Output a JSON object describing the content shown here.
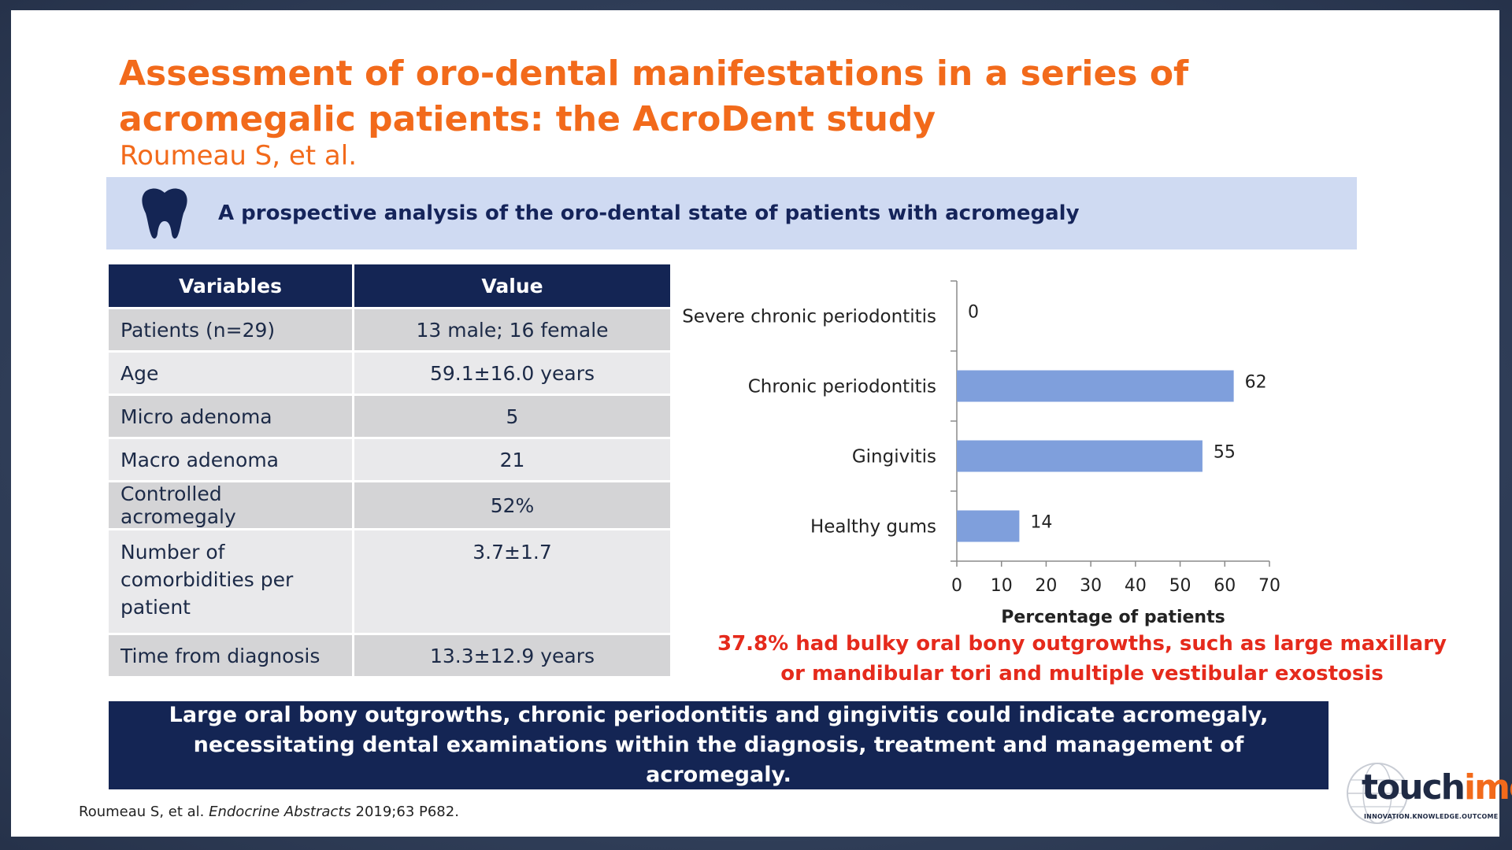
{
  "title": "Assessment of oro-dental manifestations in a series of acromegalic patients: the AcroDent study",
  "authors": "Roumeau S, et al.",
  "banner": {
    "icon": "tooth-icon",
    "text": "A prospective analysis of the oro-dental state of patients with acromegaly"
  },
  "table": {
    "headers": [
      "Variables",
      "Value"
    ],
    "rows": [
      {
        "variable": "Patients (n=29)",
        "value": "13 male; 16 female"
      },
      {
        "variable": "Age",
        "value": "59.1±16.0 years"
      },
      {
        "variable": "Micro adenoma",
        "value": "5"
      },
      {
        "variable": "Macro adenoma",
        "value": "21"
      },
      {
        "variable": "Controlled acromegaly",
        "value": "52%"
      },
      {
        "variable": "Number of comorbidities per patient",
        "value": "3.7±1.7"
      },
      {
        "variable": "Time from diagnosis",
        "value": "13.3±12.9 years"
      }
    ]
  },
  "chart_data": {
    "type": "bar",
    "orientation": "horizontal",
    "categories": [
      "Severe chronic periodontitis",
      "Chronic periodontitis",
      "Gingivitis",
      "Healthy gums"
    ],
    "values": [
      0,
      62,
      55,
      14
    ],
    "xlabel": "Percentage of patients",
    "xlim": [
      0,
      70
    ],
    "xticks": [
      0,
      10,
      20,
      30,
      40,
      50,
      60,
      70
    ],
    "bar_color": "#7f9fdc",
    "grid": false
  },
  "callout": "37.8% had bulky oral bony outgrowths, such as large maxillary or mandibular tori and multiple vestibular exostosis",
  "conclusion": "Large oral bony outgrowths, chronic periodontitis and gingivitis could indicate acromegaly, necessitating dental examinations within the diagnosis, treatment and management of acromegaly.",
  "reference": {
    "pre": "Roumeau S, et al. ",
    "journal": "Endocrine Abstracts",
    "post": " 2019;63 P682."
  },
  "logo": {
    "part1": "touch",
    "part2": "ime",
    "tagline": "INNOVATION.KNOWLEDGE.OUTCOME"
  },
  "colors": {
    "accent": "#f26a1b",
    "navy": "#142554",
    "banner": "#cfdaf2",
    "callout": "#e52a1c"
  }
}
